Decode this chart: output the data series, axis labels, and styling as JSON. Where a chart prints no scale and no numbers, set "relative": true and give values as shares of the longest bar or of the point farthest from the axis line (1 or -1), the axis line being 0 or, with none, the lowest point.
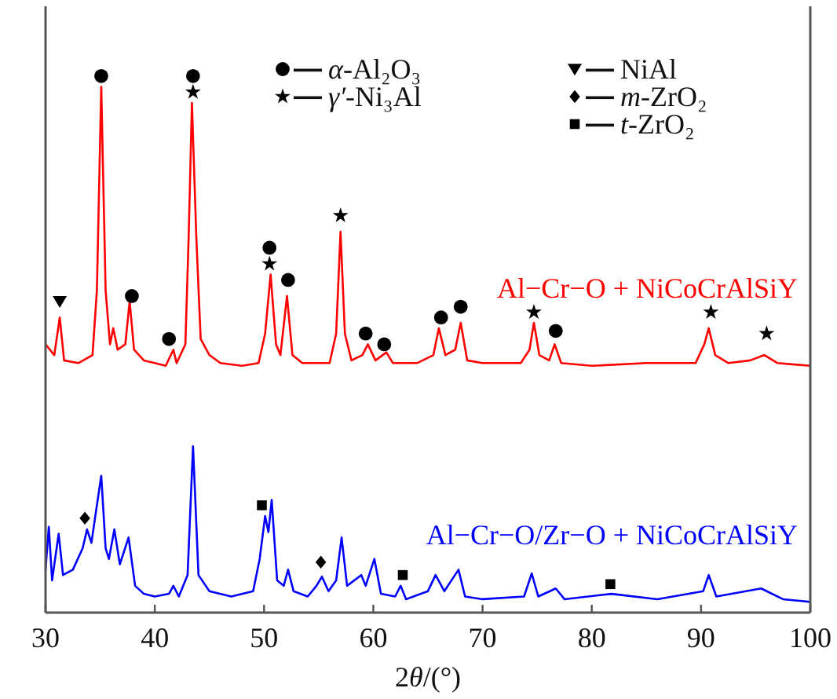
{
  "chart_data": {
    "type": "line",
    "relative": true,
    "xlabel": "2θ/(°)",
    "xlim": [
      30,
      100
    ],
    "xticks": [
      30,
      40,
      50,
      60,
      70,
      80,
      90,
      100
    ],
    "legend": "top",
    "series": [
      {
        "type": "line",
        "name": "Al−Cr−O + NiCoCrAlSiY",
        "color": "#ff0000",
        "x": [
          30,
          30.8,
          31.3,
          31.7,
          33,
          34.3,
          34.7,
          35.1,
          35.5,
          35.9,
          36.2,
          36.6,
          37.3,
          37.7,
          38.1,
          39,
          40,
          41,
          41.7,
          42,
          42.8,
          43.1,
          43.4,
          43.8,
          44.2,
          45,
          46,
          48,
          49.5,
          50.1,
          50.6,
          51.1,
          51.5,
          52.1,
          52.6,
          53.5,
          56,
          56.6,
          57,
          57.4,
          58,
          59,
          59.5,
          60.2,
          61.2,
          61.8,
          64,
          65.5,
          66,
          66.6,
          67.5,
          68,
          68.6,
          70,
          73.5,
          74.3,
          74.7,
          75.2,
          76.1,
          76.6,
          77.2,
          80,
          85,
          89.5,
          90.3,
          90.7,
          91.3,
          92.5,
          94.5,
          95.8,
          97,
          100
        ],
        "values": [
          0.5,
          0.48,
          0.55,
          0.47,
          0.465,
          0.48,
          0.6,
          0.98,
          0.6,
          0.5,
          0.53,
          0.49,
          0.5,
          0.58,
          0.49,
          0.47,
          0.465,
          0.46,
          0.49,
          0.465,
          0.5,
          0.7,
          0.95,
          0.7,
          0.51,
          0.48,
          0.465,
          0.46,
          0.465,
          0.52,
          0.63,
          0.5,
          0.48,
          0.59,
          0.48,
          0.465,
          0.465,
          0.52,
          0.71,
          0.52,
          0.47,
          0.48,
          0.5,
          0.47,
          0.485,
          0.465,
          0.465,
          0.48,
          0.53,
          0.48,
          0.49,
          0.54,
          0.47,
          0.465,
          0.465,
          0.49,
          0.54,
          0.48,
          0.47,
          0.5,
          0.465,
          0.46,
          0.465,
          0.465,
          0.5,
          0.53,
          0.48,
          0.465,
          0.47,
          0.48,
          0.465,
          0.46
        ]
      },
      {
        "type": "line",
        "name": "Al−Cr−O/Zr−O + NiCoCrAlSiY",
        "color": "#0000ff",
        "x": [
          30,
          30.3,
          30.6,
          31.2,
          31.6,
          32.5,
          33.4,
          33.8,
          34.2,
          34.7,
          35.1,
          35.5,
          35.8,
          36.3,
          36.8,
          37.6,
          38.2,
          39,
          40,
          41.3,
          41.7,
          42.2,
          43,
          43.5,
          44,
          45,
          47,
          49,
          49.6,
          50.1,
          50.4,
          50.7,
          51.2,
          51.8,
          52.2,
          52.7,
          54,
          54.8,
          55.3,
          55.9,
          56.6,
          57.1,
          57.6,
          58.9,
          59.3,
          60.1,
          60.7,
          62,
          62.5,
          63,
          65,
          65.7,
          66.5,
          67.8,
          68.4,
          70,
          73.8,
          74.5,
          75.1,
          76.7,
          77.5,
          81.8,
          86,
          90.2,
          90.7,
          91.4,
          95.5,
          97.5,
          100
        ],
        "values": [
          0.08,
          0.16,
          0.06,
          0.147,
          0.07,
          0.08,
          0.12,
          0.155,
          0.13,
          0.2,
          0.255,
          0.12,
          0.1,
          0.155,
          0.09,
          0.14,
          0.05,
          0.035,
          0.03,
          0.035,
          0.05,
          0.03,
          0.07,
          0.31,
          0.07,
          0.04,
          0.03,
          0.04,
          0.1,
          0.18,
          0.15,
          0.21,
          0.06,
          0.05,
          0.08,
          0.04,
          0.03,
          0.05,
          0.067,
          0.04,
          0.06,
          0.14,
          0.05,
          0.07,
          0.05,
          0.1,
          0.035,
          0.03,
          0.05,
          0.025,
          0.04,
          0.07,
          0.04,
          0.08,
          0.03,
          0.025,
          0.03,
          0.073,
          0.03,
          0.045,
          0.025,
          0.035,
          0.025,
          0.04,
          0.07,
          0.03,
          0.045,
          0.025,
          0.02
        ]
      },
      {
        "type": "scatter",
        "name": "α-Al₂O₃",
        "marker": "circle",
        "color": "#000000",
        "x": [
          35.1,
          37.9,
          41.3,
          43.5,
          50.5,
          52.2,
          59.3,
          61,
          66.2,
          68,
          76.7
        ],
        "values": [
          1,
          0.59,
          0.51,
          1,
          0.68,
          0.62,
          0.52,
          0.5,
          0.55,
          0.57,
          0.525
        ]
      },
      {
        "type": "scatter",
        "name": "γ′-Ni₃Al",
        "marker": "star",
        "color": "#000000",
        "x": [
          43.5,
          50.5,
          57,
          74.7,
          90.9,
          96
        ],
        "values": [
          0.97,
          0.65,
          0.74,
          0.56,
          0.56,
          0.52
        ]
      },
      {
        "type": "scatter",
        "name": "NiAl",
        "marker": "triangle",
        "color": "#000000",
        "x": [
          31.3
        ],
        "values": [
          0.58
        ]
      },
      {
        "type": "scatter",
        "name": "m-ZrO₂",
        "marker": "diamond",
        "color": "#000000",
        "x": [
          33.6,
          55.2
        ],
        "values": [
          0.176,
          0.094
        ]
      },
      {
        "type": "scatter",
        "name": "t-ZrO₂",
        "marker": "square",
        "color": "#000000",
        "x": [
          49.8,
          62.7,
          81.7
        ],
        "values": [
          0.2,
          0.07,
          0.053
        ]
      }
    ]
  }
}
